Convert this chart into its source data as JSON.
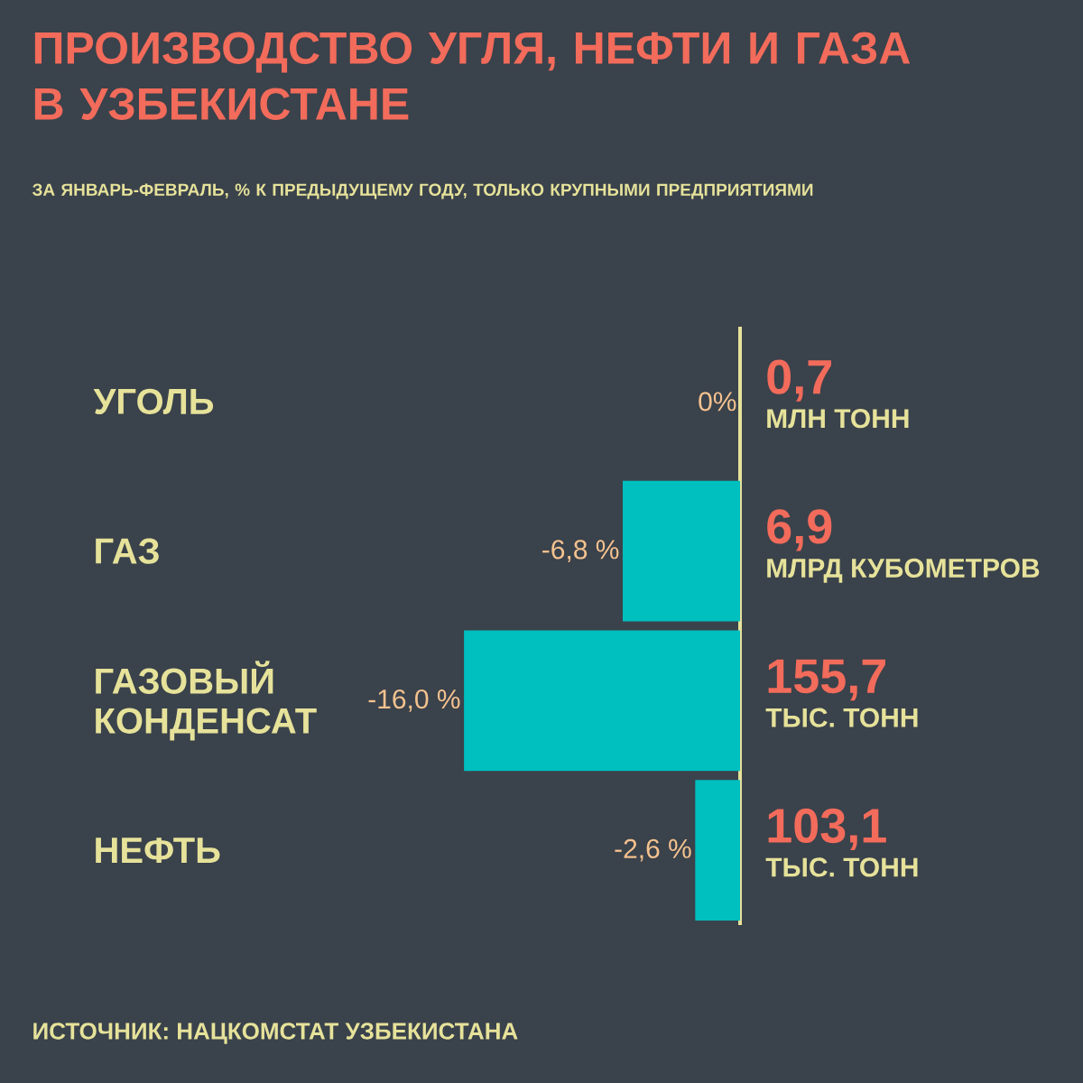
{
  "chart_data": {
    "type": "bar",
    "orientation": "horizontal",
    "title": "ПРОИЗВОДСТВО УГЛЯ, НЕФТИ И ГАЗА В УЗБЕКИСТАНЕ",
    "subtitle": "ЗА ЯНВАРЬ-ФЕВРАЛЬ, % К ПРЕДЫДУЩЕМУ ГОДУ, ТОЛЬКО КРУПНЫМИ ПРЕДПРИЯТИЯМИ",
    "categories": [
      "УГОЛЬ",
      "ГАЗ",
      "ГАЗОВЫЙ КОНДЕНСАТ",
      "НЕФТЬ"
    ],
    "values": [
      0,
      -6.8,
      -16.0,
      -2.6
    ],
    "value_labels": [
      "0%",
      "-6,8 %",
      "-16,0 %",
      "-2,6 %"
    ],
    "color": "#00bfbf",
    "annotations": [
      "0,7",
      "МЛН ТОНН",
      "6,9",
      "МЛРД КУБОМЕТРОВ",
      "155,7",
      "ТЫС. ТОНН",
      "103,1",
      "ТЫС. ТОНН",
      "ИСТОЧНИК: НАЦКОМСТАТ УЗБЕКИСТАНА"
    ]
  }
}
